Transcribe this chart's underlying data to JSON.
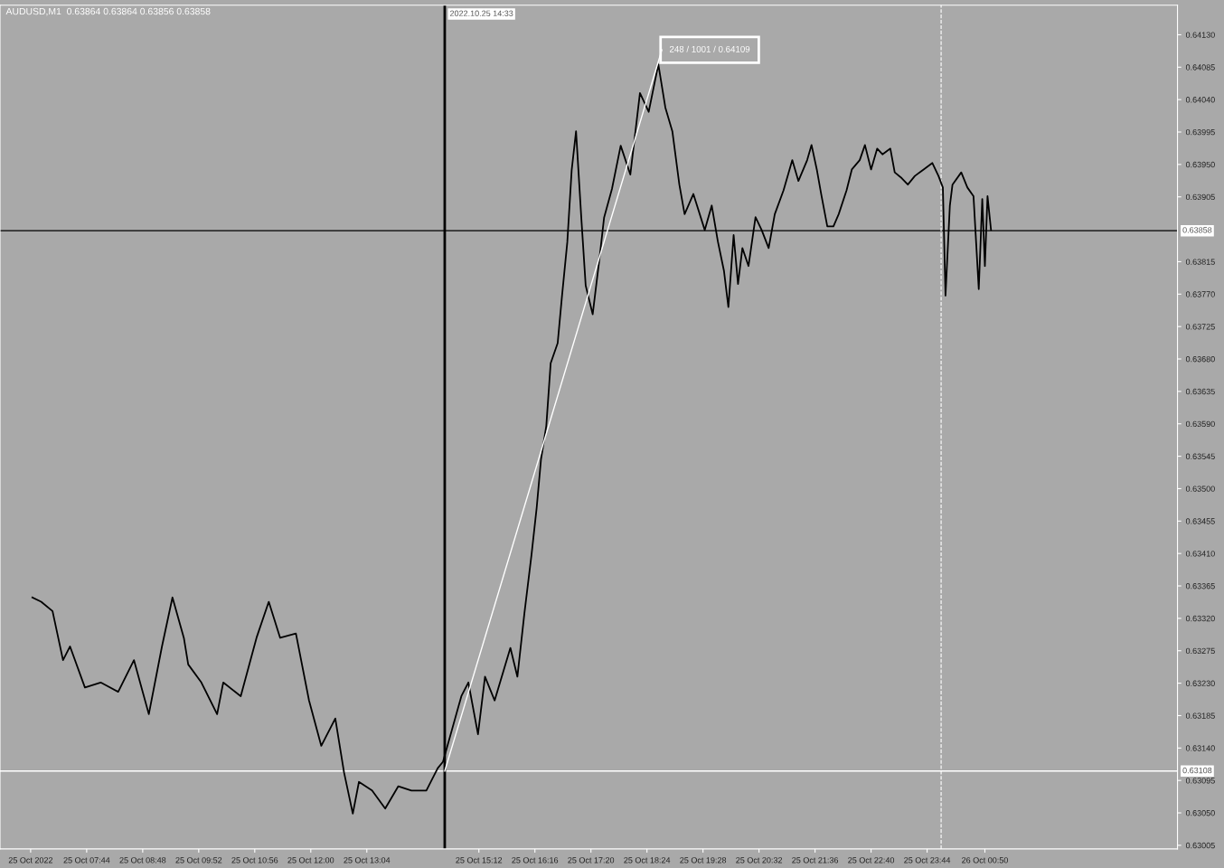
{
  "chart_data": {
    "type": "line",
    "title": "AUDUSD,M1  0.63864 0.63864 0.63856 0.63858",
    "series": [
      {
        "color": "#000000",
        "x": [
          "2022-10-25T06:42",
          "2022-10-25T06:52",
          "2022-10-25T07:05",
          "2022-10-25T07:17",
          "2022-10-25T07:25",
          "2022-10-25T07:42",
          "2022-10-25T08:00",
          "2022-10-25T08:20",
          "2022-10-25T08:38",
          "2022-10-25T08:55",
          "2022-10-25T09:10",
          "2022-10-25T09:22",
          "2022-10-25T09:35",
          "2022-10-25T09:40",
          "2022-10-25T09:55",
          "2022-10-25T10:13",
          "2022-10-25T10:20",
          "2022-10-25T10:40",
          "2022-10-25T10:58",
          "2022-10-25T11:12",
          "2022-10-25T11:25",
          "2022-10-25T11:43",
          "2022-10-25T11:58",
          "2022-10-25T12:12",
          "2022-10-25T12:28",
          "2022-10-25T12:38",
          "2022-10-25T12:48",
          "2022-10-25T12:55",
          "2022-10-25T13:10",
          "2022-10-25T13:25",
          "2022-10-25T13:40",
          "2022-10-25T13:55",
          "2022-10-25T14:12",
          "2022-10-25T14:25",
          "2022-10-25T14:31",
          "2022-10-25T14:52",
          "2022-10-25T15:00",
          "2022-10-25T15:11",
          "2022-10-25T15:19",
          "2022-10-25T15:30",
          "2022-10-25T15:48",
          "2022-10-25T15:56",
          "2022-10-25T16:04",
          "2022-10-25T16:12",
          "2022-10-25T16:18",
          "2022-10-25T16:23",
          "2022-10-25T16:29",
          "2022-10-25T16:34",
          "2022-10-25T16:42",
          "2022-10-25T16:47",
          "2022-10-25T16:53",
          "2022-10-25T16:58",
          "2022-10-25T17:03",
          "2022-10-25T17:09",
          "2022-10-25T17:14",
          "2022-10-25T17:22",
          "2022-10-25T17:30",
          "2022-10-25T17:35",
          "2022-10-25T17:44",
          "2022-10-25T17:54",
          "2022-10-25T18:05",
          "2022-10-25T18:16",
          "2022-10-25T18:26",
          "2022-10-25T18:37",
          "2022-10-25T18:45",
          "2022-10-25T18:53",
          "2022-10-25T19:01",
          "2022-10-25T19:07",
          "2022-10-25T19:17",
          "2022-10-25T19:30",
          "2022-10-25T19:38",
          "2022-10-25T19:45",
          "2022-10-25T19:52",
          "2022-10-25T19:57",
          "2022-10-25T20:03",
          "2022-10-25T20:08",
          "2022-10-25T20:13",
          "2022-10-25T20:20",
          "2022-10-25T20:28",
          "2022-10-25T20:35",
          "2022-10-25T20:43",
          "2022-10-25T20:50",
          "2022-10-25T21:00",
          "2022-10-25T21:10",
          "2022-10-25T21:17",
          "2022-10-25T21:27",
          "2022-10-25T21:32",
          "2022-10-25T21:38",
          "2022-10-25T21:43",
          "2022-10-25T21:50",
          "2022-10-25T21:57",
          "2022-10-25T22:03",
          "2022-10-25T22:12",
          "2022-10-25T22:18",
          "2022-10-25T22:27",
          "2022-10-25T22:33",
          "2022-10-25T22:40",
          "2022-10-25T22:47",
          "2022-10-25T22:53",
          "2022-10-25T23:02",
          "2022-10-25T23:07",
          "2022-10-25T23:15",
          "2022-10-25T23:22",
          "2022-10-25T23:30",
          "2022-10-25T23:40",
          "2022-10-25T23:50",
          "2022-10-25T23:57",
          "2022-10-26T00:02",
          "2022-10-26T00:05",
          "2022-10-26T00:10",
          "2022-10-26T00:13",
          "2022-10-26T00:23",
          "2022-10-26T00:30",
          "2022-10-26T00:37",
          "2022-10-26T00:43",
          "2022-10-26T00:47",
          "2022-10-26T00:50",
          "2022-10-26T00:53",
          "2022-10-26T00:57"
        ],
        "values": [
          0.63349,
          0.63343,
          0.6333,
          0.63262,
          0.63281,
          0.63224,
          0.63231,
          0.63218,
          0.63262,
          0.63187,
          0.63281,
          0.63349,
          0.63293,
          0.63256,
          0.63231,
          0.63187,
          0.63231,
          0.63212,
          0.63293,
          0.63343,
          0.63293,
          0.63299,
          0.63206,
          0.63143,
          0.63181,
          0.63106,
          0.63049,
          0.63093,
          0.63081,
          0.63056,
          0.63087,
          0.63081,
          0.63081,
          0.63112,
          0.63121,
          0.63212,
          0.63231,
          0.63159,
          0.63239,
          0.63206,
          0.63279,
          0.63239,
          0.63327,
          0.63407,
          0.63473,
          0.63541,
          0.63587,
          0.63674,
          0.63702,
          0.63768,
          0.63842,
          0.63942,
          0.63996,
          0.63876,
          0.63782,
          0.63742,
          0.63822,
          0.63876,
          0.63916,
          0.63976,
          0.63936,
          0.64049,
          0.64023,
          0.64089,
          0.64029,
          0.63996,
          0.63922,
          0.63881,
          0.63909,
          0.63859,
          0.63893,
          0.63843,
          0.63802,
          0.63752,
          0.63852,
          0.63784,
          0.63834,
          0.63809,
          0.63877,
          0.63859,
          0.63834,
          0.63881,
          0.63914,
          0.63956,
          0.63927,
          0.63956,
          0.63977,
          0.63943,
          0.63909,
          0.63864,
          0.63864,
          0.63881,
          0.63914,
          0.63943,
          0.63956,
          0.63977,
          0.63943,
          0.63972,
          0.63964,
          0.63972,
          0.63939,
          0.63931,
          0.63922,
          0.63934,
          0.63943,
          0.63952,
          0.63934,
          0.63918,
          0.63768,
          0.63893,
          0.63922,
          0.63939,
          0.63918,
          0.63906,
          0.63777,
          0.63902,
          0.63809,
          0.63906,
          0.63859
        ]
      },
      {
        "color": "#ffffff",
        "x": [
          "2022-10-25T14:33",
          "2022-10-25T18:41"
        ],
        "values": [
          0.63108,
          0.64109
        ]
      }
    ],
    "xlim": [
      "2022-10-25T06:05",
      "2022-10-26T04:30"
    ],
    "xticks": [
      {
        "value": "2022-10-25T06:40",
        "label": "25 Oct 2022"
      },
      {
        "value": "2022-10-25T07:44",
        "label": "25 Oct 07:44"
      },
      {
        "value": "2022-10-25T08:48",
        "label": "25 Oct 08:48"
      },
      {
        "value": "2022-10-25T09:52",
        "label": "25 Oct 09:52"
      },
      {
        "value": "2022-10-25T10:56",
        "label": "25 Oct 10:56"
      },
      {
        "value": "2022-10-25T12:00",
        "label": "25 Oct 12:00"
      },
      {
        "value": "2022-10-25T13:04",
        "label": "25 Oct 13:04"
      },
      {
        "value": "2022-10-25T15:12",
        "label": "25 Oct 15:12"
      },
      {
        "value": "2022-10-25T16:16",
        "label": "25 Oct 16:16"
      },
      {
        "value": "2022-10-25T17:20",
        "label": "25 Oct 17:20"
      },
      {
        "value": "2022-10-25T18:24",
        "label": "25 Oct 18:24"
      },
      {
        "value": "2022-10-25T19:28",
        "label": "25 Oct 19:28"
      },
      {
        "value": "2022-10-25T20:32",
        "label": "25 Oct 20:32"
      },
      {
        "value": "2022-10-25T21:36",
        "label": "25 Oct 21:36"
      },
      {
        "value": "2022-10-25T22:40",
        "label": "25 Oct 22:40"
      },
      {
        "value": "2022-10-25T23:44",
        "label": "25 Oct 23:44"
      },
      {
        "value": "2022-10-26T00:50",
        "label": "26 Oct 00:50"
      }
    ],
    "ylim": [
      0.63,
      0.64171
    ],
    "yticks": [
      {
        "value": 0.6413,
        "label": "0.64130"
      },
      0.64085,
      {
        "value": 0.6404,
        "label": "0.64040"
      },
      0.63995,
      {
        "value": 0.6395,
        "label": "0.63950"
      },
      0.63905,
      0.63815,
      {
        "value": 0.6377,
        "label": "0.63770"
      },
      0.63725,
      {
        "value": 0.6368,
        "label": "0.63680"
      },
      0.63635,
      {
        "value": 0.6359,
        "label": "0.63590"
      },
      0.63545,
      {
        "value": 0.635,
        "label": "0.63500"
      },
      0.63455,
      {
        "value": 0.6341,
        "label": "0.63410"
      },
      0.63365,
      {
        "value": 0.6332,
        "label": "0.63320"
      },
      0.63275,
      {
        "value": 0.6323,
        "label": "0.63230"
      },
      0.63185,
      {
        "value": 0.6314,
        "label": "0.63140"
      },
      0.63095,
      {
        "value": 0.6305,
        "label": "0.63050"
      },
      0.63005
    ],
    "ref_lines": [
      {
        "axis": "y",
        "value": 0.63858,
        "label": "0.63858",
        "color": "#000000"
      },
      {
        "axis": "y",
        "value": 0.63108,
        "label": "0.63108",
        "color": "#ffffff"
      },
      {
        "axis": "x",
        "value": "2022-10-25T14:33",
        "label": "2022.10.25 14:33",
        "color": "#000000"
      },
      {
        "axis": "x",
        "value": "2022-10-26T00:00",
        "color": "#ffffff",
        "line_style": "dashed"
      }
    ],
    "annotations": [
      {
        "text": "248 / 1001 / 0.64109",
        "x": "2022-10-25T18:41",
        "y": 0.64109
      }
    ],
    "grid": false,
    "legend": false
  }
}
